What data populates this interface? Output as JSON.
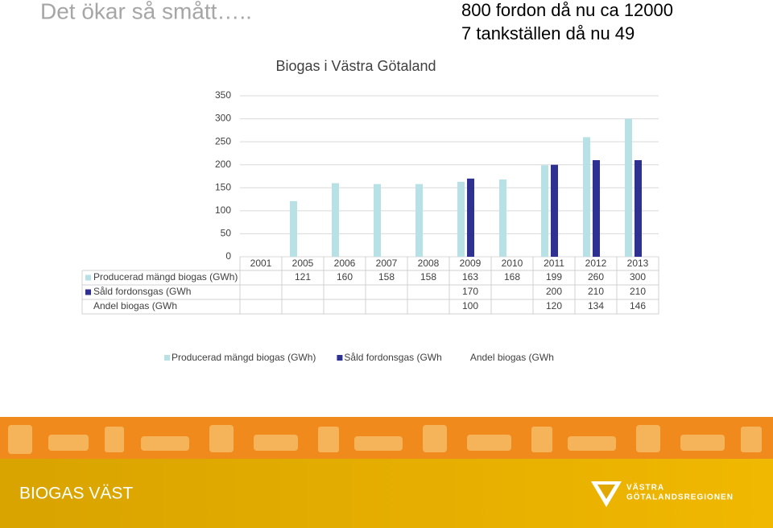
{
  "slide": {
    "title": "Det ökar så smått…..",
    "notes": [
      "800 fordon då nu ca 12000",
      "7 tankställen då nu 49"
    ],
    "footer": "BIOGAS VÄST",
    "logo": [
      "VÄSTRA",
      "GÖTALANDSREGIONEN"
    ]
  },
  "chart_data": {
    "type": "bar",
    "title": "Biogas i Västra Götaland",
    "categories": [
      "2001",
      "2005",
      "2006",
      "2007",
      "2008",
      "2009",
      "2010",
      "2011",
      "2012",
      "2013"
    ],
    "series": [
      {
        "name": "Producerad mängd biogas (GWh)",
        "color": "#b7e1e5",
        "values": [
          null,
          121,
          160,
          158,
          158,
          163,
          168,
          199,
          260,
          300
        ]
      },
      {
        "name": "Såld fordonsgas (GWh",
        "color": "#2e3192",
        "values": [
          null,
          null,
          null,
          null,
          null,
          170,
          null,
          200,
          210,
          210
        ]
      },
      {
        "name": "Andel biogas (GWh",
        "color": "#ffffff",
        "values": [
          null,
          null,
          null,
          null,
          null,
          100,
          null,
          120,
          134,
          146
        ]
      }
    ],
    "ylim": [
      0,
      350
    ],
    "yticks": [
      0,
      50,
      100,
      150,
      200,
      250,
      300,
      350
    ],
    "grid": true,
    "legend": "bottom"
  }
}
